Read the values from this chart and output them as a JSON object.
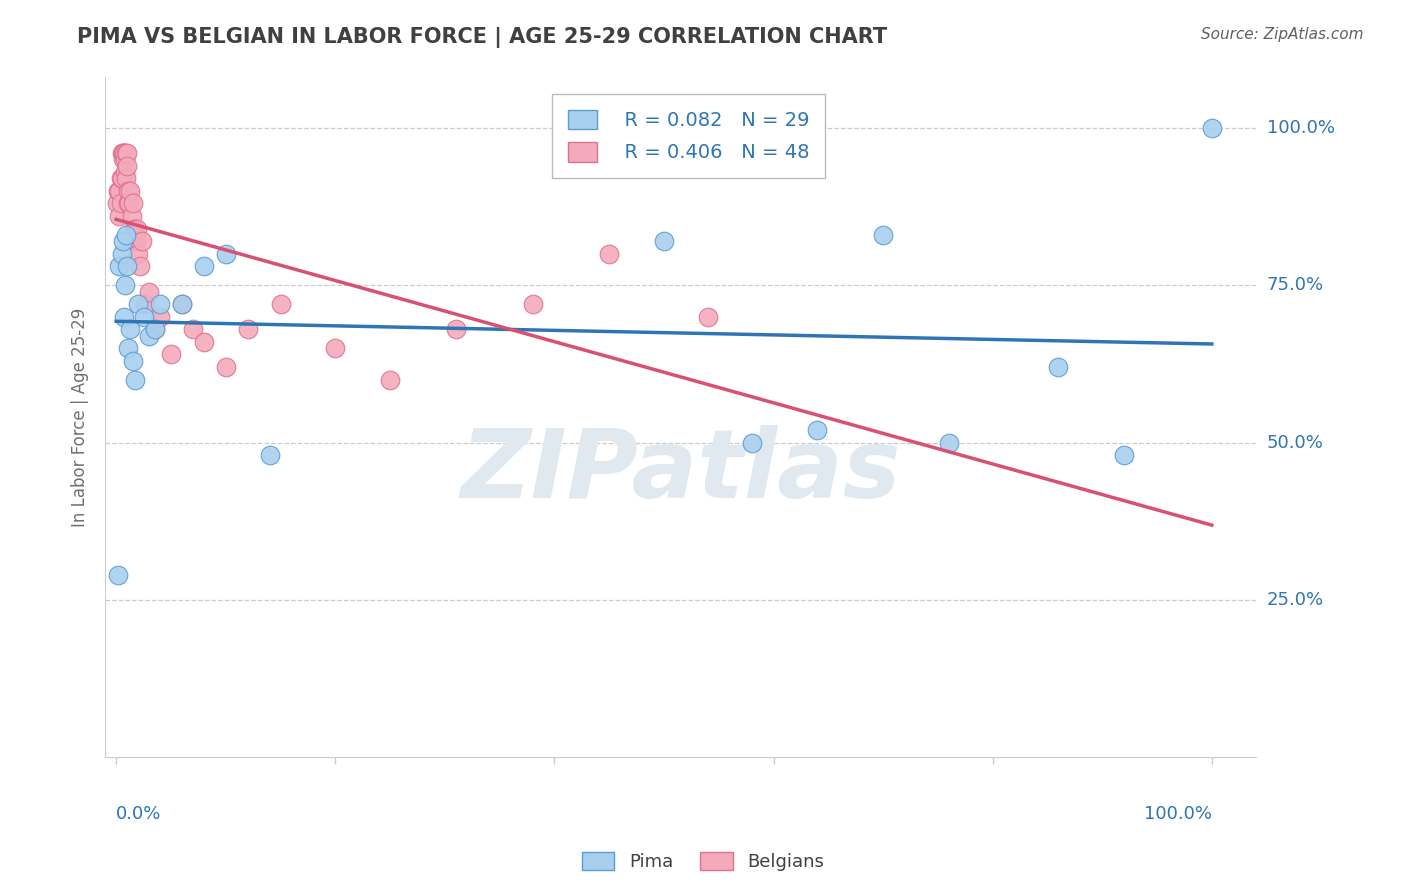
{
  "title": "PIMA VS BELGIAN IN LABOR FORCE | AGE 25-29 CORRELATION CHART",
  "source": "Source: ZipAtlas.com",
  "ylabel": "In Labor Force | Age 25-29",
  "legend_r_pima": "R = 0.082",
  "legend_n_pima": "N = 29",
  "legend_r_belgians": "R = 0.406",
  "legend_n_belgians": "N = 48",
  "pima_color": "#A8CFEE",
  "belgians_color": "#F4AABB",
  "pima_edge_color": "#5B9BD5",
  "belgians_edge_color": "#E07090",
  "pima_line_color": "#2E75B6",
  "belgians_line_color": "#D95070",
  "legend_text_color": "#2E75B6",
  "title_color": "#404040",
  "source_color": "#606060",
  "background_color": "#FFFFFF",
  "grid_color": "#CCCCCC",
  "axis_label_color": "#2E75B6",
  "ylabel_color": "#707070",
  "watermark_color": "#E0E8F0",
  "pima_x": [
    0.002,
    0.003,
    0.005,
    0.006,
    0.007,
    0.008,
    0.009,
    0.01,
    0.011,
    0.013,
    0.015,
    0.017,
    0.02,
    0.025,
    0.03,
    0.035,
    0.04,
    0.06,
    0.08,
    0.1,
    0.14,
    0.5,
    0.58,
    0.64,
    0.7,
    0.76,
    0.86,
    0.92,
    1.0
  ],
  "pima_y": [
    0.29,
    0.78,
    0.8,
    0.82,
    0.7,
    0.75,
    0.83,
    0.78,
    0.65,
    0.68,
    0.63,
    0.6,
    0.72,
    0.7,
    0.67,
    0.68,
    0.72,
    0.72,
    0.78,
    0.8,
    0.48,
    0.82,
    0.5,
    0.52,
    0.83,
    0.5,
    0.62,
    0.48,
    1.0
  ],
  "belgians_x": [
    0.001,
    0.002,
    0.003,
    0.003,
    0.004,
    0.004,
    0.005,
    0.005,
    0.006,
    0.006,
    0.007,
    0.007,
    0.008,
    0.008,
    0.009,
    0.009,
    0.01,
    0.01,
    0.011,
    0.011,
    0.012,
    0.013,
    0.014,
    0.015,
    0.016,
    0.017,
    0.018,
    0.019,
    0.02,
    0.022,
    0.024,
    0.026,
    0.03,
    0.035,
    0.04,
    0.05,
    0.06,
    0.07,
    0.08,
    0.1,
    0.12,
    0.15,
    0.2,
    0.25,
    0.31,
    0.38,
    0.45,
    0.54
  ],
  "belgians_y": [
    0.88,
    0.9,
    0.86,
    0.9,
    0.92,
    0.88,
    0.96,
    0.92,
    0.95,
    0.96,
    0.96,
    0.96,
    0.95,
    0.93,
    0.96,
    0.92,
    0.96,
    0.94,
    0.9,
    0.88,
    0.88,
    0.9,
    0.86,
    0.88,
    0.84,
    0.84,
    0.82,
    0.84,
    0.8,
    0.78,
    0.82,
    0.72,
    0.74,
    0.68,
    0.7,
    0.64,
    0.72,
    0.68,
    0.66,
    0.62,
    0.68,
    0.72,
    0.65,
    0.6,
    0.68,
    0.72,
    0.8,
    0.7
  ],
  "xlim": [
    -0.01,
    1.04
  ],
  "ylim": [
    0.0,
    1.08
  ],
  "xticks": [
    0.0,
    0.2,
    0.4,
    0.6,
    0.8,
    1.0
  ],
  "yticks": [
    0.25,
    0.5,
    0.75,
    1.0
  ],
  "ytick_labels": [
    "25.0%",
    "50.0%",
    "75.0%",
    "100.0%"
  ]
}
